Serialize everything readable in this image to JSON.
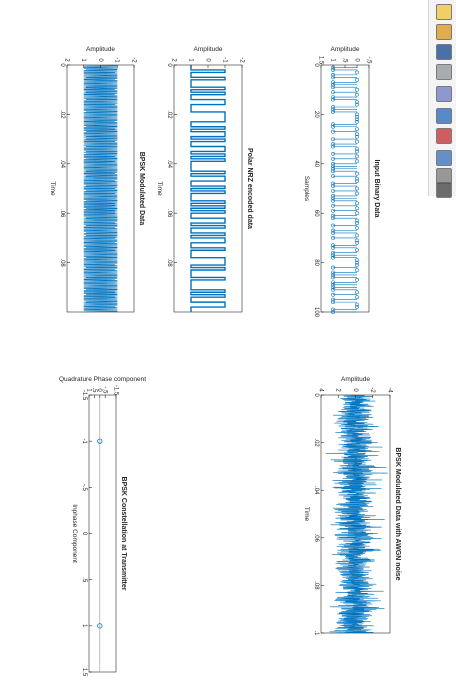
{
  "window": {
    "toolbar_icons": [
      "new-figure-icon",
      "open-file-icon",
      "save-icon",
      "print-icon",
      "edit-plot-icon",
      "link-plot-icon",
      "insert-colorbar-icon",
      "insert-legend-icon",
      "brush-icon",
      "data-cursor-icon"
    ]
  },
  "colors": {
    "series": "#0072bd",
    "axis": "#262626",
    "background": "#ffffff"
  },
  "chart_data": [
    {
      "type": "stem",
      "title": "Input Binary Data",
      "xlabel": "Samples",
      "ylabel": "Amplitude",
      "xlim": [
        0,
        100
      ],
      "ylim": [
        -0.5,
        1.5
      ],
      "xticks": [
        0,
        20,
        40,
        60,
        80,
        100
      ],
      "yticks": [
        -0.5,
        0,
        0.5,
        1,
        1.5
      ],
      "series": [
        {
          "values": [
            1,
            1,
            0,
            1,
            1,
            0,
            1,
            1,
            1,
            0,
            1,
            0,
            1,
            1,
            0,
            0,
            1,
            1,
            1,
            0,
            0,
            0,
            0,
            1,
            1,
            0,
            1,
            0,
            0,
            1,
            0,
            1,
            1,
            0,
            0,
            1,
            0,
            1,
            0,
            1,
            1,
            1,
            1,
            0,
            1,
            0,
            0,
            1,
            1,
            0,
            1,
            0,
            1,
            1,
            1,
            0,
            1,
            0,
            1,
            0,
            1,
            1,
            0,
            0,
            1,
            0,
            1,
            1,
            0,
            1,
            0,
            0,
            1,
            1,
            0,
            1,
            1,
            1,
            0,
            0,
            0,
            1,
            0,
            1,
            1,
            1,
            0,
            1,
            1,
            1,
            1,
            0,
            1,
            0,
            1,
            1,
            0,
            0,
            1,
            1
          ]
        }
      ]
    },
    {
      "type": "line",
      "title": "Polar NRZ encoded data",
      "xlabel": "Time",
      "ylabel": "Amplitude",
      "xlim": [
        0,
        0.1
      ],
      "ylim": [
        -2,
        2
      ],
      "xticks": [
        0,
        0.02,
        0.04,
        0.06,
        0.08
      ],
      "yticks": [
        -2,
        -1,
        0,
        1,
        2
      ],
      "series": [
        {
          "values": [
            1,
            1,
            -1,
            1,
            1,
            -1,
            1,
            1,
            1,
            -1,
            1,
            -1,
            1,
            1,
            -1,
            -1,
            1,
            1,
            1,
            -1,
            -1,
            -1,
            -1,
            1,
            1,
            -1,
            1,
            -1,
            -1,
            1,
            -1,
            1,
            1,
            -1,
            -1,
            1,
            -1,
            1,
            -1,
            1,
            1,
            1,
            1,
            -1,
            1,
            -1,
            -1,
            1,
            1,
            -1,
            1,
            -1,
            1,
            1,
            1,
            -1,
            1,
            -1,
            1,
            -1,
            1,
            1,
            -1,
            -1,
            1,
            -1,
            1,
            1,
            -1,
            1,
            -1,
            -1,
            1,
            1,
            -1,
            1,
            1,
            1,
            -1,
            -1,
            -1,
            1,
            -1,
            1,
            1,
            1,
            -1,
            1,
            1,
            1,
            1,
            -1,
            1,
            -1,
            1,
            1,
            -1,
            -1,
            1,
            1
          ]
        }
      ]
    },
    {
      "type": "line",
      "title": "BPSK Modulated Data",
      "xlabel": "Time",
      "ylabel": "Amplitude",
      "xlim": [
        0,
        0.1
      ],
      "ylim": [
        -2,
        2
      ],
      "xticks": [
        0,
        0.02,
        0.04,
        0.06,
        0.08
      ],
      "yticks": [
        -2,
        -1,
        0,
        1,
        2
      ],
      "series": [
        {
          "amplitude": 1
        }
      ]
    },
    {
      "type": "line",
      "title": "BPSK Modulated Data with AWGN noise",
      "xlabel": "Time",
      "ylabel": "Amplitude",
      "xlim": [
        0,
        0.1
      ],
      "ylim": [
        -4,
        4
      ],
      "xticks": [
        0,
        0.02,
        0.04,
        0.06,
        0.08,
        0.1
      ],
      "yticks": [
        -4,
        -2,
        0,
        2,
        4
      ],
      "series": [
        {
          "amplitude": 1
        }
      ]
    },
    {
      "type": "scatter",
      "title": "BPSK Constellation at Transmitter",
      "xlabel": "Inphase Component",
      "ylabel": "Quadrature Phase component",
      "xlim": [
        -1.5,
        1.5
      ],
      "ylim": [
        -1.5,
        1
      ],
      "xticks": [
        -1.5,
        -1,
        -0.5,
        0,
        0.5,
        1,
        1.5
      ],
      "yticks": [
        -1.5,
        -0.5,
        0,
        0.5,
        1
      ],
      "points": [
        {
          "x": -1,
          "y": 0
        },
        {
          "x": 1,
          "y": 0
        }
      ]
    }
  ]
}
